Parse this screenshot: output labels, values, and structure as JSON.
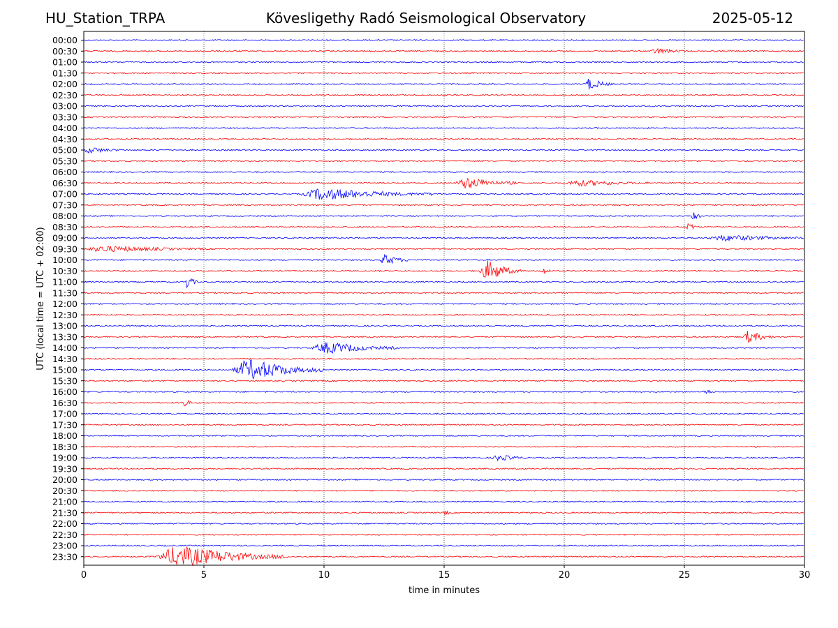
{
  "header": {
    "station": "HU_Station_TRPA",
    "observatory": "Kövesligethy Radó Seismological Observatory",
    "date": "2025-05-12"
  },
  "colors": {
    "blue_trace": "#0000ff",
    "red_trace": "#ff0000",
    "grid": "#000000"
  },
  "chart_data": {
    "type": "line",
    "title": "Kövesligethy Radó Seismological Observatory",
    "xlabel": "time in minutes",
    "ylabel": "UTC (local time = UTC + 02:00)",
    "xlim": [
      0,
      30
    ],
    "xticks": [
      "0",
      "5",
      "10",
      "15",
      "20",
      "25",
      "30"
    ],
    "grid": "vertical dotted lines every 5 minutes",
    "rows": [
      "00:00",
      "00:30",
      "01:00",
      "01:30",
      "02:00",
      "02:30",
      "03:00",
      "03:30",
      "04:00",
      "04:30",
      "05:00",
      "05:30",
      "06:00",
      "06:30",
      "07:00",
      "07:30",
      "08:00",
      "08:30",
      "09:00",
      "09:30",
      "10:00",
      "10:30",
      "11:00",
      "11:30",
      "12:00",
      "12:30",
      "13:00",
      "13:30",
      "14:00",
      "14:30",
      "15:00",
      "15:30",
      "16:00",
      "16:30",
      "17:00",
      "17:30",
      "18:00",
      "18:30",
      "19:00",
      "19:30",
      "20:00",
      "20:30",
      "21:00",
      "21:30",
      "22:00",
      "22:30",
      "23:00",
      "23:30"
    ],
    "row_colors": "alternating blue (full hour) and red (half hour)",
    "events": [
      {
        "row": "00:30",
        "start_min": 23.6,
        "end_min": 25.0,
        "amplitude": "small"
      },
      {
        "row": "02:00",
        "start_min": 20.8,
        "end_min": 22.0,
        "amplitude": "medium"
      },
      {
        "row": "05:00",
        "start_min": 0.0,
        "end_min": 1.5,
        "amplitude": "small"
      },
      {
        "row": "06:30",
        "start_min": 15.5,
        "end_min": 18.0,
        "amplitude": "medium"
      },
      {
        "row": "06:30",
        "start_min": 20.0,
        "end_min": 23.5,
        "amplitude": "small"
      },
      {
        "row": "07:00",
        "start_min": 9.0,
        "end_min": 14.5,
        "amplitude": "medium"
      },
      {
        "row": "08:00",
        "start_min": 25.2,
        "end_min": 25.7,
        "amplitude": "medium"
      },
      {
        "row": "08:30",
        "start_min": 25.1,
        "end_min": 25.5,
        "amplitude": "medium"
      },
      {
        "row": "09:00",
        "start_min": 26.0,
        "end_min": 30.0,
        "amplitude": "small"
      },
      {
        "row": "09:30",
        "start_min": 0.0,
        "end_min": 5.0,
        "amplitude": "small"
      },
      {
        "row": "10:00",
        "start_min": 12.3,
        "end_min": 13.5,
        "amplitude": "medium"
      },
      {
        "row": "10:30",
        "start_min": 16.5,
        "end_min": 18.2,
        "amplitude": "large"
      },
      {
        "row": "10:30",
        "start_min": 19.0,
        "end_min": 19.4,
        "amplitude": "medium"
      },
      {
        "row": "11:00",
        "start_min": 4.2,
        "end_min": 4.8,
        "amplitude": "medium"
      },
      {
        "row": "13:30",
        "start_min": 27.4,
        "end_min": 28.8,
        "amplitude": "medium"
      },
      {
        "row": "14:00",
        "start_min": 9.5,
        "end_min": 13.0,
        "amplitude": "medium"
      },
      {
        "row": "15:00",
        "start_min": 6.2,
        "end_min": 10.0,
        "amplitude": "large"
      },
      {
        "row": "16:00",
        "start_min": 25.8,
        "end_min": 26.2,
        "amplitude": "small"
      },
      {
        "row": "16:30",
        "start_min": 4.1,
        "end_min": 4.5,
        "amplitude": "medium"
      },
      {
        "row": "19:00",
        "start_min": 17.0,
        "end_min": 18.5,
        "amplitude": "small"
      },
      {
        "row": "21:30",
        "start_min": 15.0,
        "end_min": 15.3,
        "amplitude": "small"
      },
      {
        "row": "23:30",
        "start_min": 3.0,
        "end_min": 8.5,
        "amplitude": "large"
      }
    ]
  }
}
